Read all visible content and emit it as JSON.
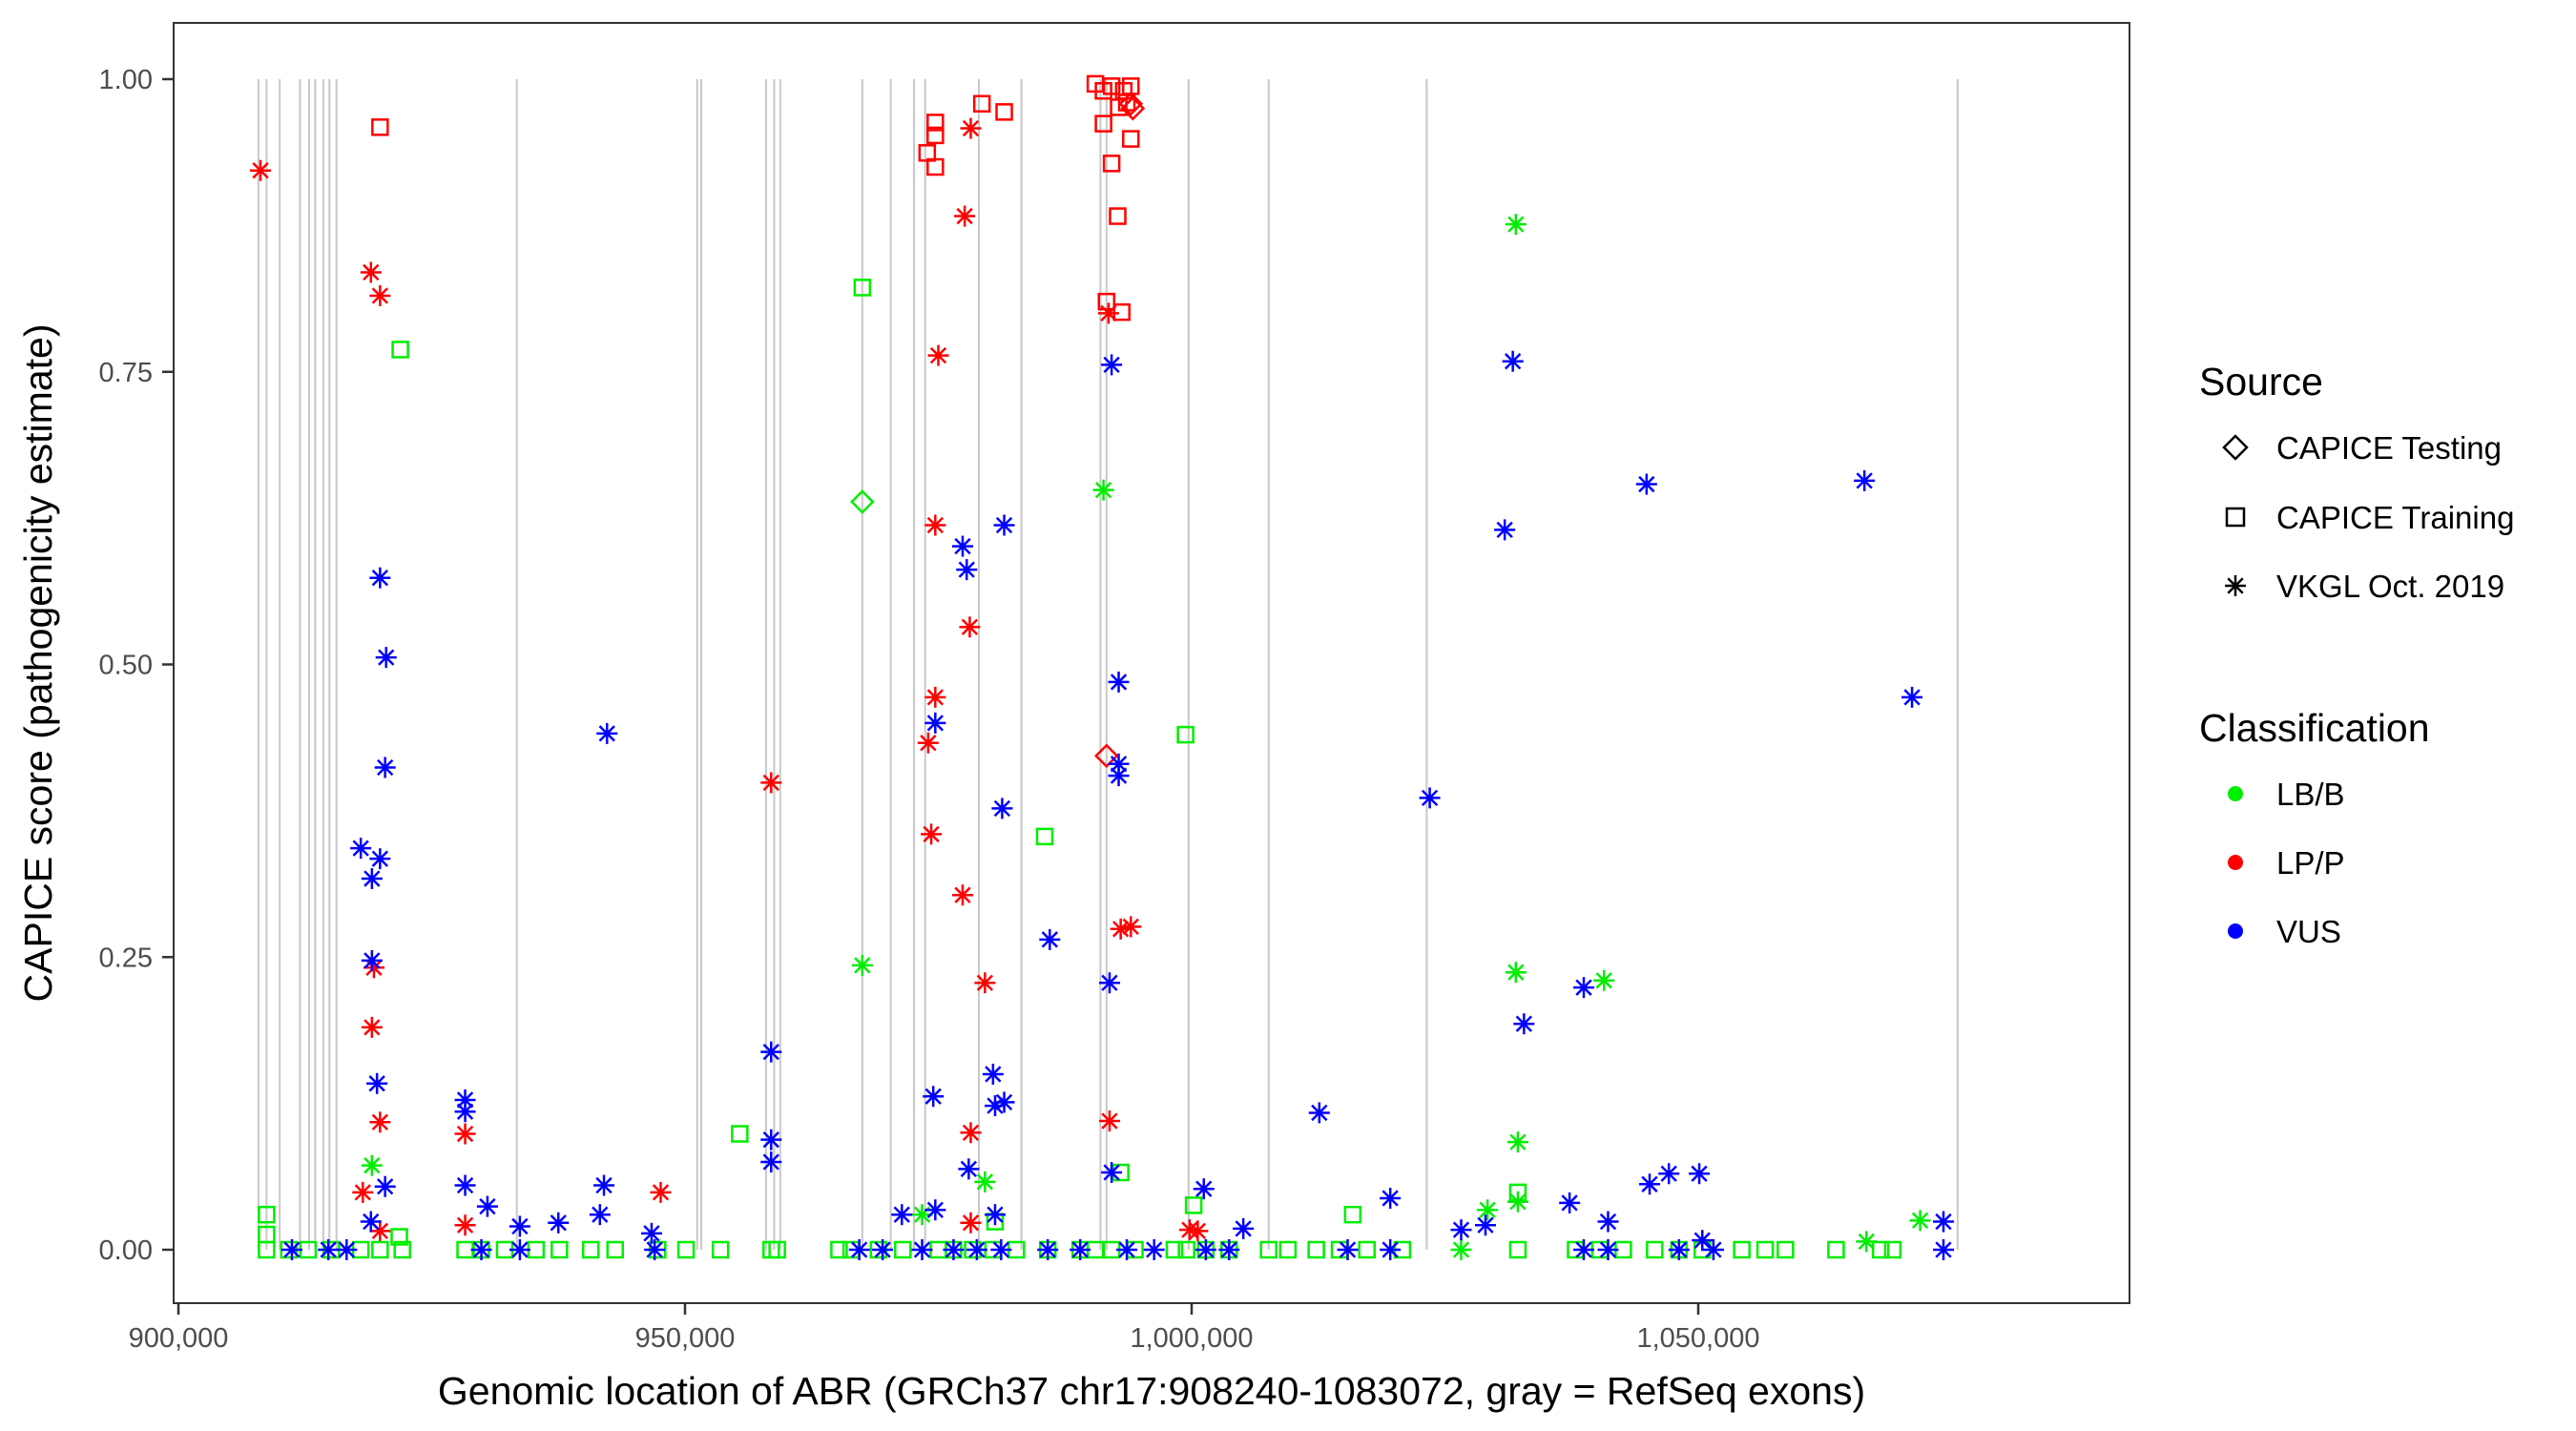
{
  "chart_data": {
    "type": "scatter",
    "xlabel": "Genomic location of ABR (GRCh37 chr17:908240-1083072, gray = RefSeq exons)",
    "ylabel": "CAPICE score (pathogenicity estimate)",
    "xlim": [
      897000,
      1087000
    ],
    "ylim": [
      -0.05,
      1.05
    ],
    "x_ticks": [
      {
        "value": 900000,
        "label": "900,000"
      },
      {
        "value": 950000,
        "label": "950,000"
      },
      {
        "value": 1000000,
        "label": "1,000,000"
      },
      {
        "value": 1050000,
        "label": "1,050,000"
      }
    ],
    "y_ticks": [
      {
        "value": 0,
        "label": "0.00"
      },
      {
        "value": 0.25,
        "label": "0.25"
      },
      {
        "value": 0.5,
        "label": "0.50"
      },
      {
        "value": 0.75,
        "label": "0.75"
      },
      {
        "value": 1,
        "label": "1.00"
      }
    ],
    "grid": false,
    "exon_lines": [
      907900,
      908700,
      910000,
      912000,
      912900,
      913500,
      914300,
      914900,
      915600,
      933400,
      951200,
      951600,
      958000,
      958800,
      959400,
      967500,
      970300,
      972600,
      973700,
      979000,
      983200,
      991000,
      991600,
      999700,
      1007600,
      1023200,
      1075600
    ],
    "legend": {
      "placement": "right",
      "source_title": "Source",
      "source_items": [
        {
          "label": "CAPICE Testing",
          "shape": "diamond"
        },
        {
          "label": "CAPICE Training",
          "shape": "square"
        },
        {
          "label": "VKGL Oct. 2019",
          "shape": "asterisk"
        }
      ],
      "class_title": "Classification",
      "class_items": [
        {
          "label": "LB/B",
          "color": "#00ee00"
        },
        {
          "label": "LP/P",
          "color": "#ff0000"
        },
        {
          "label": "VUS",
          "color": "#0000ff"
        }
      ]
    },
    "series": [
      {
        "source": "VKGL Oct. 2019",
        "classification": "LP/P",
        "x": [
          908100,
          919000,
          919900,
          919300,
          919100,
          919900,
          918200,
          919900,
          928300,
          928300,
          947600,
          958500,
          978200,
          977600,
          975000,
          974700,
          978100,
          974700,
          974000,
          974300,
          977400,
          979600,
          978200,
          978200,
          991800,
          991900,
          993000,
          994000,
          999800,
          1000600
        ],
        "y": [
          0.922,
          0.835,
          0.815,
          0.241,
          0.19,
          0.109,
          0.049,
          0.016,
          0.099,
          0.021,
          0.049,
          0.399,
          0.958,
          0.883,
          0.764,
          0.619,
          0.532,
          0.472,
          0.433,
          0.355,
          0.303,
          0.228,
          0.1,
          0.023,
          0.8,
          0.11,
          0.274,
          0.276,
          0.017,
          0.016
        ]
      },
      {
        "source": "CAPICE Training",
        "classification": "LP/P",
        "x": [
          919900,
          973900,
          974700,
          974700,
          974700,
          979300,
          981500,
          990500,
          991300,
          992100,
          993300,
          994000,
          991600,
          993100,
          992700,
          992100,
          994000,
          991300,
          992800,
          993600
        ],
        "y": [
          0.959,
          0.937,
          0.952,
          0.963,
          0.925,
          0.979,
          0.972,
          0.996,
          0.99,
          0.994,
          0.99,
          0.994,
          0.81,
          0.801,
          0.883,
          0.928,
          0.949,
          0.962,
          0.976,
          0.98
        ]
      },
      {
        "source": "CAPICE Testing",
        "classification": "LP/P",
        "x": [
          991600,
          994000,
          994200
        ],
        "y": [
          0.422,
          0.979,
          0.975
        ]
      },
      {
        "source": "VKGL Oct. 2019",
        "classification": "LB/B",
        "x": [
          919100,
          967500,
          991300,
          979600,
          1032000,
          1032000,
          1032200,
          1032200,
          1040700,
          1029200,
          1026600,
          1071900,
          1066600,
          973400
        ],
        "y": [
          0.072,
          0.243,
          0.649,
          0.058,
          0.876,
          0.237,
          0.092,
          0.041,
          0.23,
          0.034,
          0,
          0.025,
          0.007,
          0.03
        ]
      },
      {
        "source": "CAPICE Training",
        "classification": "LB/B",
        "x": [
          908700,
          908700,
          921900,
          967500,
          955400,
          985500,
          999400,
          993000,
          1032200,
          1015900,
          1000200,
          980600,
          921800,
          908700,
          910900,
          912800,
          915100,
          918000,
          919900,
          922100,
          928300,
          929900,
          932200,
          935300,
          937600,
          940700,
          943100,
          947300,
          950100,
          953500,
          958500,
          959100,
          965200,
          966400,
          969100,
          971500,
          975000,
          976500,
          978400,
          980400,
          982700,
          985800,
          989000,
          990500,
          992100,
          994400,
          998300,
          999500,
          1001400,
          1003700,
          1007600,
          1009500,
          1012300,
          1014600,
          1017300,
          1020800,
          1032200,
          1037900,
          1040300,
          1042600,
          1045700,
          1048100,
          1050400,
          1054300,
          1056600,
          1058600,
          1063600,
          1068000,
          1069200
        ],
        "y": [
          0.03,
          0.013,
          0.769,
          0.822,
          0.099,
          0.353,
          0.44,
          0.066,
          0.049,
          0.03,
          0.038,
          0.024,
          0.011,
          0,
          0,
          0,
          0,
          0,
          0,
          0,
          0,
          0,
          0,
          0,
          0,
          0,
          0,
          0,
          0,
          0,
          0,
          0,
          0,
          0,
          0,
          0,
          0,
          0,
          0,
          0,
          0,
          0,
          0,
          0,
          0,
          0,
          0,
          0,
          0,
          0,
          0,
          0,
          0,
          0,
          0,
          0,
          0,
          0,
          0,
          0,
          0,
          0,
          0,
          0,
          0,
          0,
          0,
          0,
          0
        ]
      },
      {
        "source": "CAPICE Testing",
        "classification": "LB/B",
        "x": [
          967500
        ],
        "y": [
          0.639
        ]
      },
      {
        "source": "VKGL Oct. 2019",
        "classification": "VUS",
        "x": [
          919900,
          920500,
          920400,
          918000,
          919900,
          919100,
          919100,
          919600,
          920400,
          919000,
          928300,
          928300,
          928300,
          930500,
          933700,
          937500,
          942000,
          942300,
          941600,
          946700,
          958500,
          958500,
          958500,
          974500,
          974700,
          977400,
          977800,
          981500,
          981300,
          980400,
          981500,
          980600,
          986000,
          978000,
          974700,
          971400,
          980600,
          992100,
          992800,
          992800,
          992800,
          991900,
          992100,
          1001200,
          1005100,
          1012600,
          1019600,
          1023500,
          1026600,
          1029000,
          1030900,
          1031700,
          1032800,
          1037300,
          1038700,
          1041100,
          1044900,
          1045200,
          1047100,
          1050100,
          1050400,
          1066400,
          1071100,
          1074200,
          911200,
          914800,
          916600,
          929900,
          933700,
          947000,
          967200,
          969500,
          973400,
          976500,
          978800,
          981200,
          985800,
          989000,
          993600,
          996300,
          1001400,
          1003700,
          1015400,
          1019600,
          1038700,
          1041100,
          1048100,
          1051500,
          1074200
        ],
        "y": [
          0.574,
          0.506,
          0.412,
          0.343,
          0.334,
          0.317,
          0.247,
          0.142,
          0.054,
          0.024,
          0.128,
          0.118,
          0.055,
          0.037,
          0.02,
          0.023,
          0.055,
          0.441,
          0.03,
          0.014,
          0.169,
          0.094,
          0.075,
          0.131,
          0.45,
          0.601,
          0.581,
          0.619,
          0.377,
          0.15,
          0.126,
          0.123,
          0.265,
          0.069,
          0.034,
          0.03,
          0.03,
          0.756,
          0.485,
          0.415,
          0.405,
          0.228,
          0.066,
          0.052,
          0.018,
          0.117,
          0.044,
          0.386,
          0.017,
          0.021,
          0.615,
          0.759,
          0.193,
          0.04,
          0.224,
          0.024,
          0.654,
          0.056,
          0.065,
          0.065,
          0.008,
          0.657,
          0.472,
          0.024,
          0,
          0,
          0,
          0,
          0,
          0,
          0,
          0,
          0,
          0,
          0,
          0,
          0,
          0,
          0,
          0,
          0,
          0,
          0,
          0,
          0,
          0,
          0,
          0,
          0
        ]
      }
    ]
  }
}
